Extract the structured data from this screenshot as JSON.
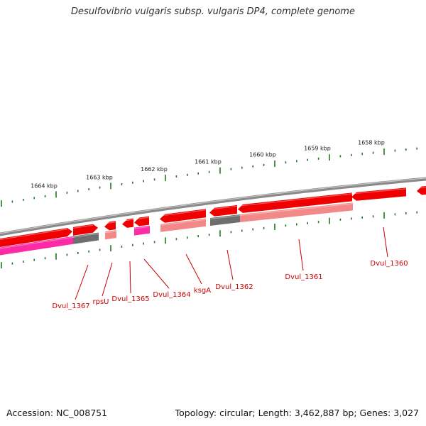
{
  "title": "Desulfovibrio vulgaris subsp. vulgaris DP4, complete genome",
  "accession": "Accession: NC_008751",
  "topology": "Topology: circular; Length: 3,462,887 bp; Genes: 3,027",
  "colors": {
    "backbone": "#8a8a8a",
    "gene_forward": "#ee0000",
    "gene_reverse_magenta": "#ff2aa6",
    "gene_reverse_pink": "#f28888",
    "gene_gray": "#6e6e6e",
    "tick": "#1f7a1f",
    "label": "#cc0000"
  },
  "ruler_labels": [
    "1664 kbp",
    "1663 kbp",
    "1662 kbp",
    "1661 kbp",
    "1660 kbp",
    "1659 kbp",
    "1658 kbp"
  ],
  "gene_labels": [
    "Dvul_1367",
    "rpsU",
    "Dvul_1365",
    "Dvul_1364",
    "ksgA",
    "Dvul_1362",
    "Dvul_1361",
    "Dvul_1360"
  ]
}
